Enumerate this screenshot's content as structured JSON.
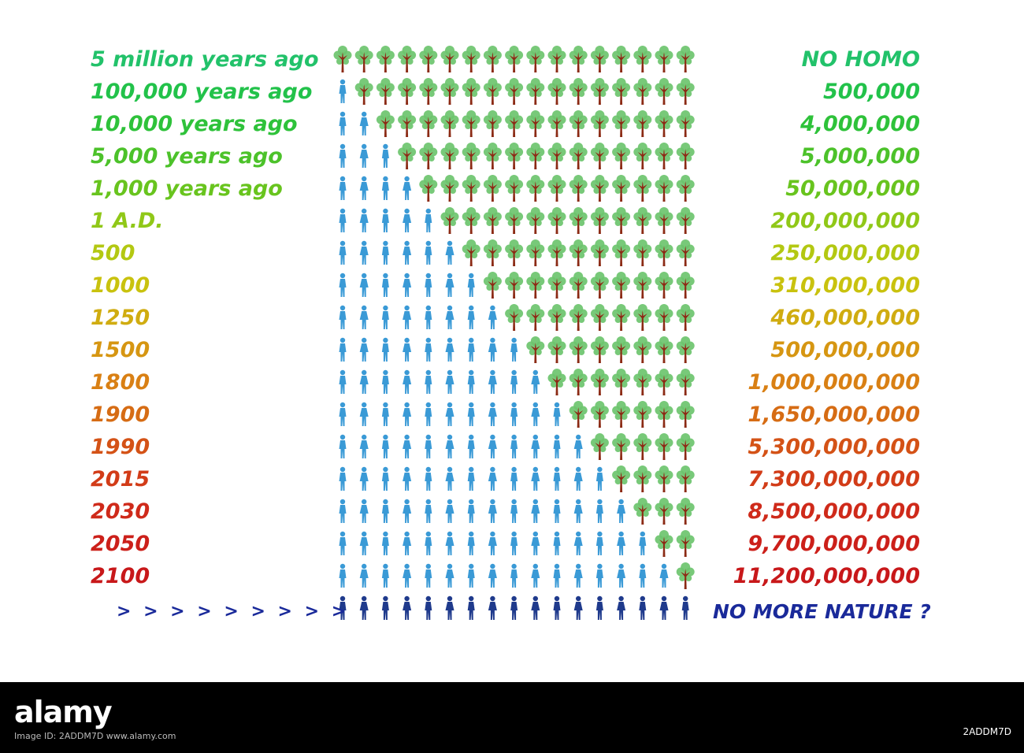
{
  "rows": [
    {
      "label": "5 million years ago",
      "value": "NO  HOMO",
      "humans": 0,
      "color": "#22c26a"
    },
    {
      "label": "100,000 years ago",
      "value": "500,000",
      "humans": 1,
      "color": "#22c24a"
    },
    {
      "label": "10,000 years ago",
      "value": "4,000,000",
      "humans": 2,
      "color": "#2ec23a"
    },
    {
      "label": "5,000 years ago",
      "value": "5,000,000",
      "humans": 3,
      "color": "#4cc22a"
    },
    {
      "label": "1,000 years ago",
      "value": "50,000,000",
      "humans": 4,
      "color": "#68c41e"
    },
    {
      "label": "1 A.D.",
      "value": "200,000,000",
      "humans": 5,
      "color": "#90c818"
    },
    {
      "label": "500",
      "value": "250,000,000",
      "humans": 6,
      "color": "#b3c812"
    },
    {
      "label": "1000",
      "value": "310,000,000",
      "humans": 7,
      "color": "#c9c20e"
    },
    {
      "label": "1250",
      "value": "460,000,000",
      "humans": 8,
      "color": "#d0ac10"
    },
    {
      "label": "1500",
      "value": "500,000,000",
      "humans": 9,
      "color": "#d69612"
    },
    {
      "label": "1800",
      "value": "1,000,000,000",
      "humans": 10,
      "color": "#d98014"
    },
    {
      "label": "1900",
      "value": "1,650,000,000",
      "humans": 11,
      "color": "#d66c14"
    },
    {
      "label": "1990",
      "value": "5,300,000,000",
      "humans": 12,
      "color": "#d45216"
    },
    {
      "label": "2015",
      "value": "7,300,000,000",
      "humans": 13,
      "color": "#d23c18"
    },
    {
      "label": "2030",
      "value": "8,500,000,000",
      "humans": 14,
      "color": "#cf2a1a"
    },
    {
      "label": "2050",
      "value": "9,700,000,000",
      "humans": 15,
      "color": "#cc201a"
    },
    {
      "label": "2100",
      "value": "11,200,000,000",
      "humans": 16,
      "color": "#c8181a"
    }
  ],
  "final_row": {
    "label": "> > > > > > > > >",
    "value": "NO MORE NATURE ?",
    "humans": 17,
    "color": "#1a2a9a"
  },
  "icons_per_row": 17,
  "colors": {
    "human": "#3a9ad6",
    "human_final": "#1f3a8c",
    "tree_leaf": "#6cc46e",
    "tree_trunk": "#8b2a14"
  },
  "watermark": {
    "brand": "alamy",
    "image_id": "2ADDM7D",
    "meta": "Image ID: 2ADDM7D  www.alamy.com"
  }
}
